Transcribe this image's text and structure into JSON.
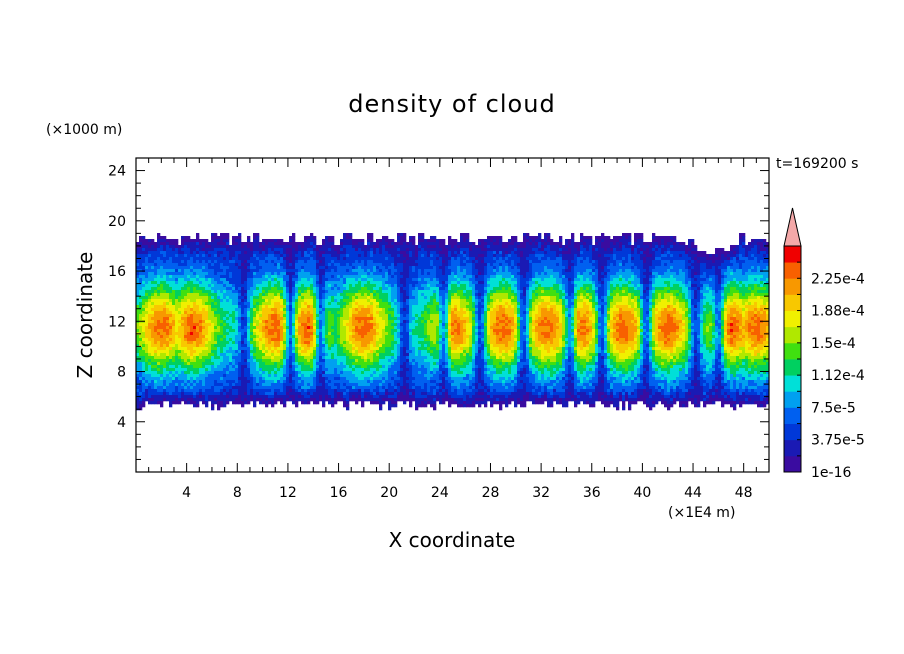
{
  "chart_data": {
    "type": "heatmap",
    "title": "density of cloud",
    "xlabel": "X coordinate",
    "ylabel": "Z coordinate",
    "x_unit": "(×1E4 m)",
    "y_unit": "(×1000 m)",
    "time_label": "t=169200 s",
    "xlim": [
      0,
      50
    ],
    "ylim": [
      0,
      25
    ],
    "x_ticks": [
      4,
      8,
      12,
      16,
      20,
      24,
      28,
      32,
      36,
      40,
      44,
      48
    ],
    "x_tick_labels": [
      "4",
      "8",
      "12",
      "16",
      "20",
      "24",
      "28",
      "32",
      "36",
      "40",
      "44",
      "48"
    ],
    "y_ticks": [
      4,
      8,
      12,
      16,
      20,
      24
    ],
    "y_tick_labels": [
      "4",
      "8",
      "12",
      "16",
      "20",
      "24"
    ],
    "cloud_base": 5,
    "cloud_top": 18.6,
    "tower_centers": [
      2,
      4.5,
      11,
      13.5,
      18,
      25,
      29,
      32.5,
      35,
      38.5,
      42,
      47,
      49
    ],
    "gaps": [
      8.5,
      12.2,
      14.6,
      21.2,
      24.3,
      27.2,
      30.6,
      34.3,
      36.8,
      40.3,
      44.2,
      46
    ],
    "colorbar": {
      "levels": [
        1e-16,
        1.875e-05,
        3.75e-05,
        5.625e-05,
        7.5e-05,
        9.375e-05,
        0.0001125,
        0.00013125,
        0.00015,
        0.00016875,
        0.0001875,
        0.00020625,
        0.000225,
        0.00024375
      ],
      "tick_labels": [
        "2.25e-4",
        "1.88e-4",
        "1.5e-4",
        "1.12e-4",
        "7.5e-5",
        "3.75e-5",
        "1e-16"
      ],
      "colors": [
        "#3a0ca0",
        "#1a1ab4",
        "#0038d8",
        "#0060f0",
        "#00a0f0",
        "#00e0d8",
        "#00d060",
        "#40e010",
        "#b0e800",
        "#f0f000",
        "#f8c800",
        "#f89800",
        "#f86000",
        "#f00000"
      ],
      "extend_color": "#f4a8a8"
    }
  }
}
